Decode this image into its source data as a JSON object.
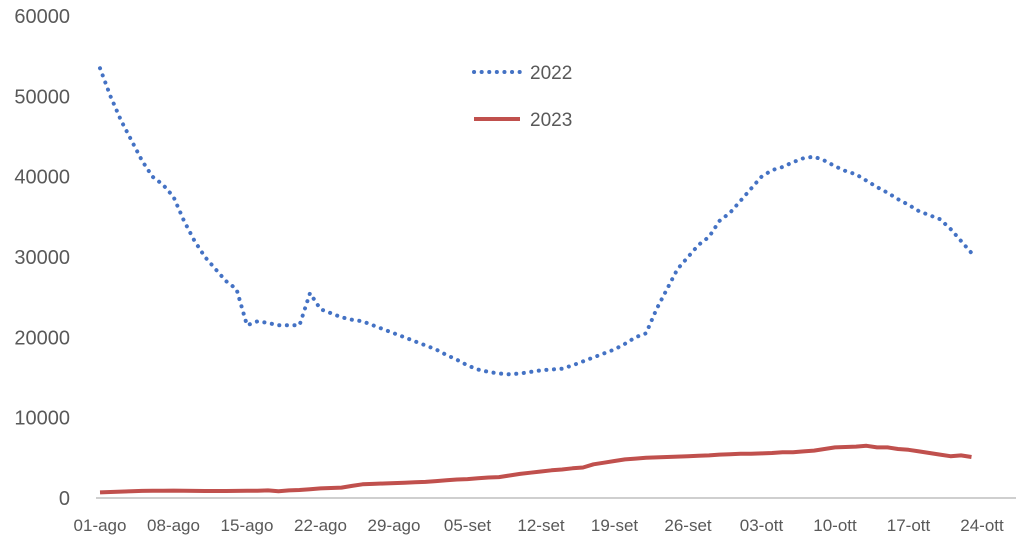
{
  "chart_data": {
    "type": "line",
    "title": "",
    "xlabel": "",
    "ylabel": "",
    "ylim": [
      0,
      60000
    ],
    "yticks": [
      0,
      10000,
      20000,
      30000,
      40000,
      50000,
      60000
    ],
    "grid": false,
    "legend_position": "top-center",
    "x_tick_labels": [
      "01-ago",
      "08-ago",
      "15-ago",
      "22-ago",
      "29-ago",
      "05-set",
      "12-set",
      "19-set",
      "26-set",
      "03-ott",
      "10-ott",
      "17-ott",
      "24-ott"
    ],
    "x_start_label": "01-ago",
    "series": [
      {
        "name": "2022",
        "style": "dotted",
        "color": "#4472C4",
        "values": [
          53500,
          50000,
          47000,
          44500,
          42000,
          40000,
          39000,
          37500,
          34500,
          32000,
          30000,
          28500,
          27000,
          26000,
          21500,
          22000,
          21800,
          21500,
          21500,
          21500,
          25500,
          23500,
          23000,
          22500,
          22200,
          22000,
          21500,
          21000,
          20500,
          20000,
          19500,
          19000,
          18500,
          17800,
          17200,
          16500,
          16000,
          15700,
          15500,
          15400,
          15500,
          15700,
          15900,
          16000,
          16100,
          16500,
          17000,
          17500,
          18000,
          18500,
          19200,
          20000,
          20500,
          23500,
          26000,
          28500,
          30000,
          31500,
          32500,
          34500,
          35500,
          37000,
          38500,
          40000,
          40800,
          41200,
          41800,
          42300,
          42500,
          42000,
          41300,
          40700,
          40300,
          39500,
          38700,
          38000,
          37200,
          36500,
          35700,
          35200,
          34700,
          33500,
          32000,
          30500
        ]
      },
      {
        "name": "2023",
        "style": "solid",
        "color": "#C0504D",
        "values": [
          700,
          750,
          800,
          850,
          880,
          900,
          900,
          920,
          900,
          880,
          870,
          870,
          870,
          880,
          900,
          900,
          950,
          850,
          950,
          1000,
          1100,
          1200,
          1250,
          1300,
          1500,
          1700,
          1750,
          1800,
          1850,
          1900,
          1950,
          2000,
          2100,
          2200,
          2300,
          2350,
          2450,
          2550,
          2600,
          2800,
          3000,
          3150,
          3300,
          3450,
          3550,
          3700,
          3800,
          4200,
          4400,
          4600,
          4800,
          4900,
          5000,
          5050,
          5100,
          5150,
          5200,
          5250,
          5300,
          5400,
          5450,
          5500,
          5500,
          5550,
          5600,
          5700,
          5700,
          5800,
          5900,
          6100,
          6300,
          6350,
          6400,
          6500,
          6300,
          6300,
          6100,
          6000,
          5800,
          5600,
          5400,
          5200,
          5300,
          5100
        ]
      }
    ]
  }
}
